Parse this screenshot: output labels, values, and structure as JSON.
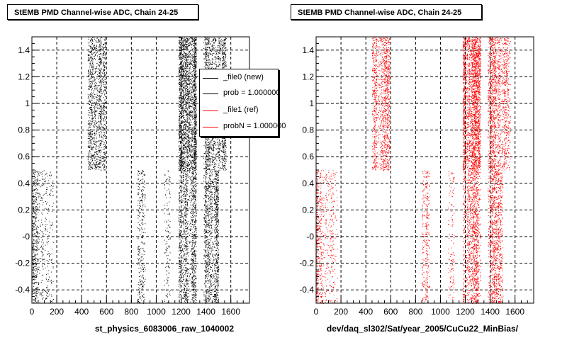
{
  "chart_data": [
    {
      "type": "scatter",
      "title": "StEMB PMD Channel-wise ADC, Chain 24-25",
      "xlabel": "st_physics_6083006_raw_1040002",
      "ylabel": "",
      "xlim": [
        0,
        1750
      ],
      "ylim": [
        -0.5,
        1.5
      ],
      "x_ticks": [
        0,
        200,
        400,
        600,
        800,
        1000,
        1200,
        1400,
        1600
      ],
      "y_ticks": [
        -0.4,
        -0.2,
        0,
        0.2,
        0.4,
        0.6,
        0.8,
        1,
        1.2,
        1.4
      ],
      "y_tick_labels": [
        "-0.4",
        "-0.2",
        "-0",
        "0.2",
        "0.4",
        "0.6",
        "0.8",
        "1",
        "1.2",
        "1.4"
      ],
      "grid": true,
      "marker_color": "#000000",
      "bands": [
        {
          "x": [
            0,
            40
          ],
          "y": [
            -0.5,
            0.5
          ],
          "density": "high"
        },
        {
          "x": [
            40,
            170
          ],
          "y": [
            -0.5,
            0.5
          ],
          "density": "low"
        },
        {
          "x": [
            450,
            590
          ],
          "y": [
            0.5,
            1.5
          ],
          "density": "high"
        },
        {
          "x": [
            850,
            910
          ],
          "y": [
            -0.5,
            0.5
          ],
          "density": "medium"
        },
        {
          "x": [
            1060,
            1110
          ],
          "y": [
            -0.5,
            0.5
          ],
          "density": "low"
        },
        {
          "x": [
            1180,
            1320
          ],
          "y": [
            0.5,
            1.5
          ],
          "density": "very-high"
        },
        {
          "x": [
            1180,
            1320
          ],
          "y": [
            -0.5,
            0.5
          ],
          "density": "high"
        },
        {
          "x": [
            1380,
            1560
          ],
          "y": [
            0.5,
            1.5
          ],
          "density": "high"
        },
        {
          "x": [
            1380,
            1500
          ],
          "y": [
            -0.5,
            0.5
          ],
          "density": "high"
        }
      ],
      "legend": {
        "position": "top-right",
        "entries": [
          {
            "label": "_file0 (new)",
            "color": "#000000"
          },
          {
            "label": "prob = 1.000000",
            "color": "#000000"
          },
          {
            "label": "_file1 (ref)",
            "color": "#ff0000"
          },
          {
            "label": "probN = 1.000000",
            "color": "#ff0000"
          }
        ]
      }
    },
    {
      "type": "scatter",
      "title": "StEMB PMD Channel-wise ADC, Chain 24-25",
      "xlabel": "dev/daq_sl302/Sat/year_2005/CuCu22_MinBias/",
      "ylabel": "",
      "xlim": [
        0,
        1750
      ],
      "ylim": [
        -0.5,
        1.5
      ],
      "x_ticks": [
        0,
        200,
        400,
        600,
        800,
        1000,
        1200,
        1400,
        1600
      ],
      "y_ticks": [
        -0.4,
        -0.2,
        0,
        0.2,
        0.4,
        0.6,
        0.8,
        1,
        1.2,
        1.4
      ],
      "y_tick_labels": [
        "-0.4",
        "-0.2",
        "-0",
        "0.2",
        "0.4",
        "0.6",
        "0.8",
        "1",
        "1.2",
        "1.4"
      ],
      "grid": true,
      "marker_color": "#ff0000",
      "bands": [
        {
          "x": [
            0,
            40
          ],
          "y": [
            -0.5,
            0.5
          ],
          "density": "high"
        },
        {
          "x": [
            40,
            170
          ],
          "y": [
            -0.5,
            0.5
          ],
          "density": "low"
        },
        {
          "x": [
            450,
            590
          ],
          "y": [
            0.5,
            1.5
          ],
          "density": "high"
        },
        {
          "x": [
            850,
            910
          ],
          "y": [
            -0.5,
            0.5
          ],
          "density": "medium"
        },
        {
          "x": [
            1060,
            1110
          ],
          "y": [
            -0.5,
            0.5
          ],
          "density": "low"
        },
        {
          "x": [
            1180,
            1320
          ],
          "y": [
            0.5,
            1.5
          ],
          "density": "very-high"
        },
        {
          "x": [
            1180,
            1320
          ],
          "y": [
            -0.5,
            0.5
          ],
          "density": "high"
        },
        {
          "x": [
            1380,
            1560
          ],
          "y": [
            0.5,
            1.5
          ],
          "density": "high"
        },
        {
          "x": [
            1380,
            1500
          ],
          "y": [
            -0.5,
            0.5
          ],
          "density": "high"
        }
      ]
    }
  ]
}
